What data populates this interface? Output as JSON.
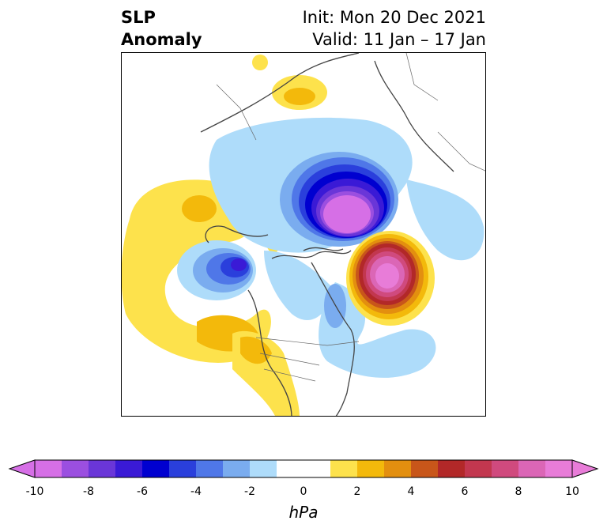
{
  "header": {
    "title_line1": "SLP",
    "title_line2": "Anomaly",
    "init": "Init: Mon 20 Dec 2021",
    "valid": "Valid: 11 Jan – 17 Jan"
  },
  "map": {
    "projection": "north-polar-stereographic",
    "features": [
      "negative-anomaly-arctic",
      "positive-anomaly-north-atlantic",
      "negative-anomaly-gulf-of-alaska",
      "positive-anomaly-north-pacific",
      "positive-anomaly-western-us"
    ]
  },
  "colorbar": {
    "unit": "hPa",
    "tick_labels": [
      "-10",
      "-8",
      "-6",
      "-4",
      "-2",
      "0",
      "2",
      "4",
      "6",
      "8",
      "10"
    ],
    "colors": [
      "#d66fe6",
      "#9b4fe0",
      "#6a36d8",
      "#3a1ad6",
      "#0000d0",
      "#2a3fdc",
      "#4f77e8",
      "#7aacef",
      "#aedcfa",
      "#ffffff",
      "#ffffff",
      "#fde24c",
      "#f3b90b",
      "#e38f0f",
      "#c8561a",
      "#b22828",
      "#c2374f",
      "#d04a7e",
      "#db66b6",
      "#e87cd8"
    ],
    "extend": "both"
  }
}
